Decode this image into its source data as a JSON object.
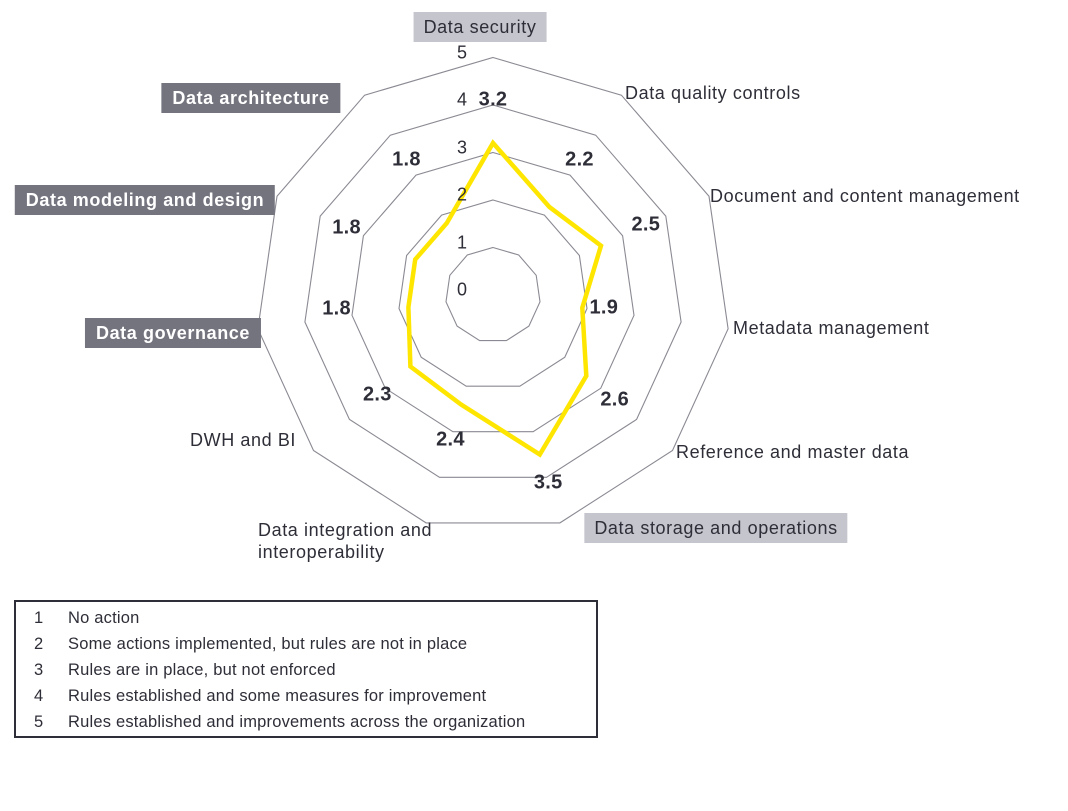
{
  "chart_data": {
    "type": "radar",
    "title": "",
    "rmax": 5,
    "scale_ticks": [
      "0",
      "1",
      "2",
      "3",
      "4",
      "5"
    ],
    "grid": true,
    "legend_position": "bottom-left-box",
    "series_color": "#FFE600",
    "axes": [
      {
        "label": "Data security",
        "value": 3.2,
        "highlight": "light"
      },
      {
        "label": "Data quality controls",
        "value": 2.2,
        "highlight": "none"
      },
      {
        "label": "Document and content management",
        "value": 2.5,
        "highlight": "none"
      },
      {
        "label": "Metadata management",
        "value": 1.9,
        "highlight": "none"
      },
      {
        "label": "Reference and master data",
        "value": 2.6,
        "highlight": "none"
      },
      {
        "label": "Data storage and operations",
        "value": 3.5,
        "highlight": "light"
      },
      {
        "label": "Data integration and interoperability",
        "value": 2.4,
        "highlight": "none"
      },
      {
        "label": "DWH and BI",
        "value": 2.3,
        "highlight": "none"
      },
      {
        "label": "Data governance",
        "value": 1.8,
        "highlight": "dark"
      },
      {
        "label": "Data modeling and design",
        "value": 1.8,
        "highlight": "dark"
      },
      {
        "label": "Data architecture",
        "value": 1.8,
        "highlight": "dark"
      }
    ]
  },
  "legend": {
    "items": [
      {
        "level": "1",
        "text": "No action"
      },
      {
        "level": "2",
        "text": "Some actions implemented, but rules are not in place"
      },
      {
        "level": "3",
        "text": "Rules are in place, but not enforced"
      },
      {
        "level": "4",
        "text": "Rules established and some measures for improvement"
      },
      {
        "level": "5",
        "text": "Rules established and improvements across the organization"
      }
    ]
  },
  "colors": {
    "accent_yellow": "#FFE600",
    "dark_label_bg": "#74747F",
    "light_label_bg": "#C5C5CE",
    "text_dark": "#2E2E38",
    "grid_line": "#8A8A93",
    "legend_border": "#2E2E38"
  }
}
